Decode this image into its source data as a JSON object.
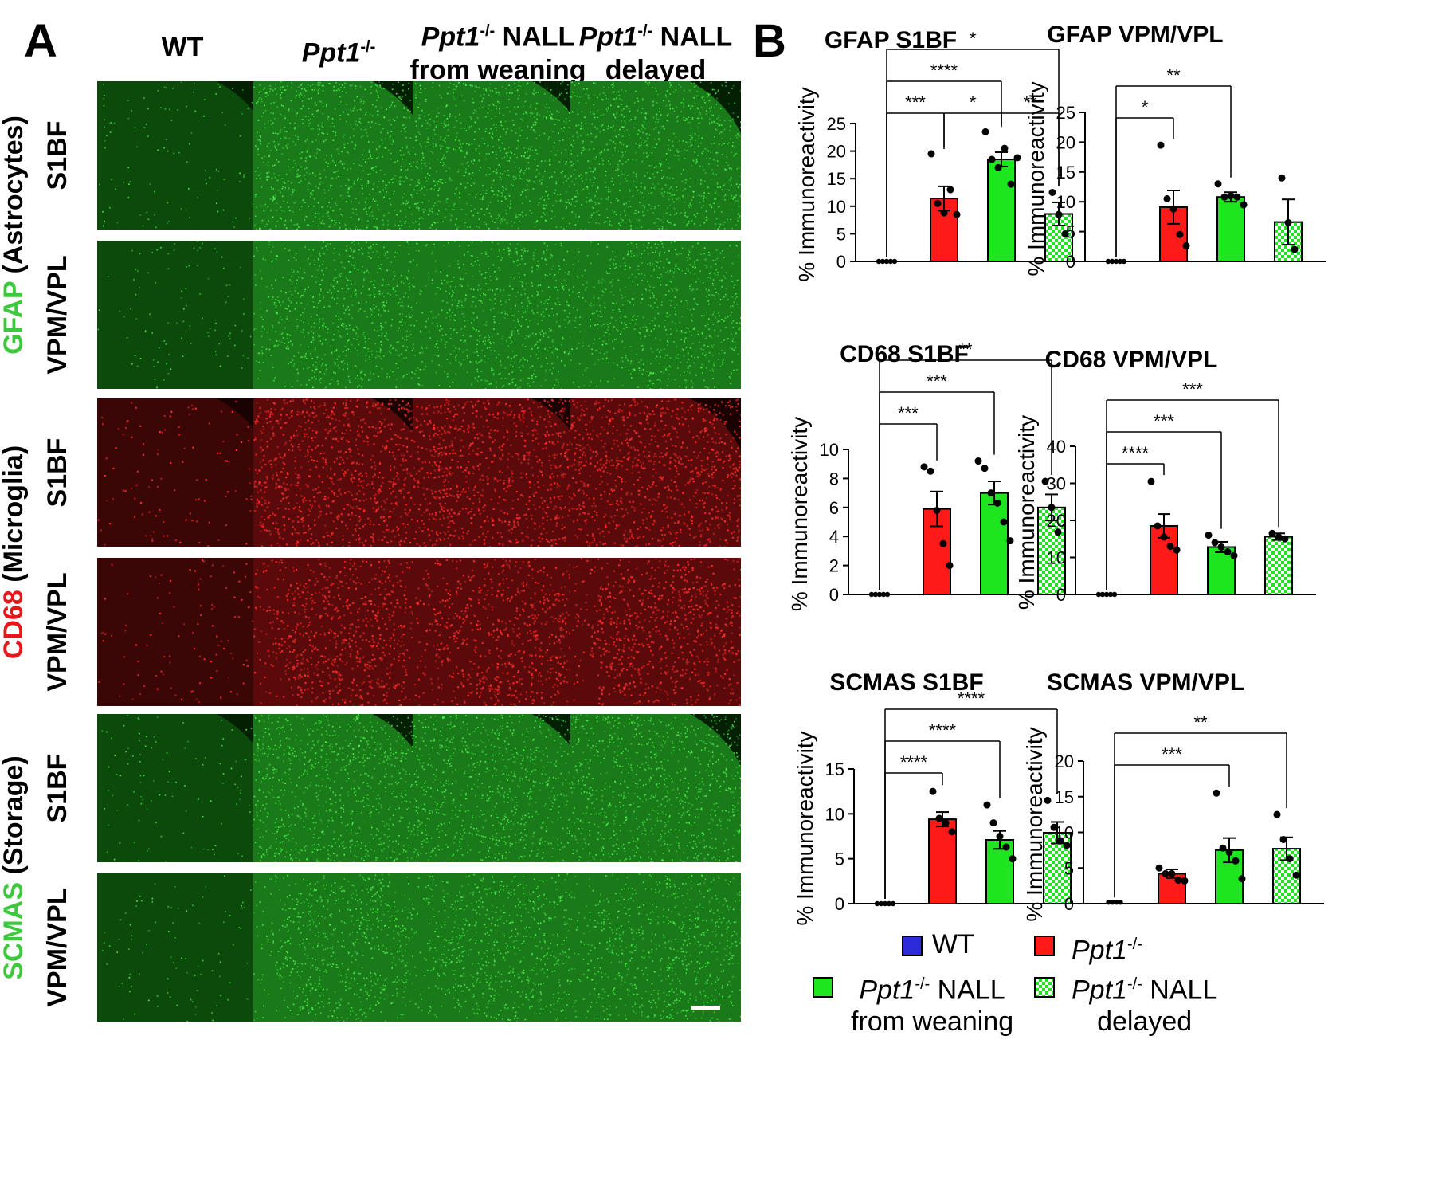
{
  "panel_a": {
    "letter": "A",
    "columns": [
      {
        "line1_italic": "",
        "line1_sup": "",
        "line1_rest": "WT",
        "line2": ""
      },
      {
        "line1_italic": "Ppt1",
        "line1_sup": "-/-",
        "line1_rest": "",
        "line2": ""
      },
      {
        "line1_italic": "Ppt1",
        "line1_sup": "-/-",
        "line1_rest": " NALL",
        "line2": "from weaning"
      },
      {
        "line1_italic": "Ppt1",
        "line1_sup": "-/-",
        "line1_rest": " NALL",
        "line2": "delayed"
      }
    ],
    "rows": [
      "S1BF",
      "VPM/VPL",
      "S1BF",
      "VPM/VPL",
      "S1BF",
      "VPM/VPL"
    ],
    "groups": [
      {
        "marker": "GFAP",
        "rest": " (Astrocytes)",
        "color": "#3ec83e"
      },
      {
        "marker": "CD68",
        "rest": " (Microglia)",
        "color": "#e8161b"
      },
      {
        "marker": "SCMAS",
        "rest": " (Storage)",
        "color": "#3ec83e"
      }
    ],
    "tile_colors": [
      "green",
      "green",
      "red",
      "red",
      "green",
      "green"
    ]
  },
  "panel_b": {
    "letter": "B",
    "legend": [
      {
        "italic": "",
        "sup": "",
        "rest": "WT",
        "line2": "",
        "style": "blue"
      },
      {
        "italic": "Ppt1",
        "sup": "-/-",
        "rest": "",
        "line2": "",
        "style": "red"
      },
      {
        "italic": "Ppt1",
        "sup": "-/-",
        "rest": " NALL",
        "line2": "from weaning",
        "style": "green"
      },
      {
        "italic": "Ppt1",
        "sup": "-/-",
        "rest": " NALL",
        "line2": "delayed",
        "style": "checker"
      }
    ]
  },
  "colors": {
    "WT": "#2b2bdc",
    "Ppt1": "#ff1a1a",
    "weaning": "#1ee61e",
    "delayed_a": "#1ee61e",
    "delayed_b": "#ffffff"
  },
  "chart_data": [
    {
      "type": "bar",
      "title": "GFAP S1BF",
      "ylabel": "% Immunoreactivity",
      "categories": [
        "WT",
        "Ppt1-/-",
        "Ppt1-/- NALL from weaning",
        "Ppt1-/- NALL delayed"
      ],
      "values": [
        0,
        11.4,
        18.5,
        8.6
      ],
      "errors": [
        0,
        2.2,
        1.3,
        2.1
      ],
      "points": [
        [
          0,
          0,
          0,
          0,
          0
        ],
        [
          19.5,
          10.5,
          8.8,
          13,
          8.5
        ],
        [
          23.5,
          18.5,
          17,
          20.5,
          14,
          18.8
        ],
        [
          12.5,
          8.5,
          5
        ]
      ],
      "ylim": [
        0,
        25
      ],
      "yticks": [
        0,
        5,
        10,
        15,
        20,
        25
      ],
      "significance": [
        {
          "from": 0,
          "to": 1,
          "label": "***",
          "level": 1
        },
        {
          "from": 1,
          "to": 2,
          "label": "*",
          "level": 1
        },
        {
          "from": 2,
          "to": 3,
          "label": "**",
          "level": 1
        },
        {
          "from": 0,
          "to": 2,
          "label": "****",
          "level": 2
        },
        {
          "from": 0,
          "to": 3,
          "label": "*",
          "level": 3
        }
      ]
    },
    {
      "type": "bar",
      "title": "GFAP VPM/VPL",
      "ylabel": "% Immunoreactivity",
      "categories": [
        "WT",
        "Ppt1-/-",
        "Ppt1-/- NALL from weaning",
        "Ppt1-/- NALL delayed"
      ],
      "values": [
        0,
        9.1,
        10.8,
        6.6
      ],
      "errors": [
        0,
        2.8,
        0.8,
        3.8
      ],
      "points": [
        [
          0,
          0,
          0,
          0,
          0
        ],
        [
          19.5,
          10.5,
          8.8,
          4.5,
          2.6
        ],
        [
          13,
          10.8,
          11,
          10.8,
          9.5
        ],
        [
          14,
          6.5,
          2
        ]
      ],
      "ylim": [
        0,
        25
      ],
      "yticks": [
        0,
        5,
        10,
        15,
        20,
        25
      ],
      "significance": [
        {
          "from": 0,
          "to": 1,
          "label": "*",
          "level": 1
        },
        {
          "from": 0,
          "to": 2,
          "label": "**",
          "level": 2
        }
      ]
    },
    {
      "type": "bar",
      "title": "CD68 S1BF",
      "ylabel": "% Immunoreactivity",
      "categories": [
        "WT",
        "Ppt1-/-",
        "Ppt1-/- NALL from weaning",
        "Ppt1-/- NALL delayed"
      ],
      "values": [
        0,
        5.9,
        7.0,
        6.0
      ],
      "errors": [
        0,
        1.2,
        0.8,
        0.9
      ],
      "points": [
        [
          0,
          0,
          0,
          0,
          0
        ],
        [
          8.8,
          8.5,
          5.8,
          3.5,
          2
        ],
        [
          9.2,
          8.7,
          7,
          6.3,
          5,
          3.7
        ],
        [
          7.8,
          6,
          4.3
        ]
      ],
      "ylim": [
        0,
        10
      ],
      "yticks": [
        0,
        2,
        4,
        6,
        8,
        10
      ],
      "significance": [
        {
          "from": 0,
          "to": 1,
          "label": "***",
          "level": 1
        },
        {
          "from": 0,
          "to": 2,
          "label": "***",
          "level": 2
        },
        {
          "from": 0,
          "to": 3,
          "label": "**",
          "level": 3
        }
      ]
    },
    {
      "type": "bar",
      "title": "CD68 VPM/VPL",
      "ylabel": "% Immunoreactivity",
      "categories": [
        "WT",
        "Ppt1-/-",
        "Ppt1-/- NALL from weaning",
        "Ppt1-/- NALL delayed"
      ],
      "values": [
        0,
        18.5,
        12.8,
        15.6
      ],
      "errors": [
        0,
        3.2,
        1.4,
        0.9
      ],
      "points": [
        [
          0,
          0,
          0,
          0,
          0
        ],
        [
          30.5,
          18.5,
          15.5,
          13,
          12
        ],
        [
          16,
          14,
          12.8,
          11.5,
          10.5
        ],
        [
          16.5,
          15.5,
          15
        ]
      ],
      "ylim": [
        0,
        40
      ],
      "yticks": [
        0,
        10,
        20,
        30,
        40
      ],
      "significance": [
        {
          "from": 0,
          "to": 1,
          "label": "****",
          "level": 1
        },
        {
          "from": 0,
          "to": 2,
          "label": "***",
          "level": 2
        },
        {
          "from": 0,
          "to": 3,
          "label": "***",
          "level": 3
        }
      ]
    },
    {
      "type": "bar",
      "title": "SCMAS S1BF",
      "ylabel": "% Immunoreactivity",
      "categories": [
        "WT",
        "Ppt1-/-",
        "Ppt1-/- NALL from weaning",
        "Ppt1-/- NALL delayed"
      ],
      "values": [
        0,
        9.4,
        7.1,
        7.9
      ],
      "errors": [
        0,
        0.8,
        1.0,
        1.2
      ],
      "points": [
        [
          0,
          0,
          0,
          0,
          0
        ],
        [
          12.5,
          9.5,
          9,
          8
        ],
        [
          11,
          9,
          7.5,
          6.3,
          5
        ],
        [
          11.5,
          8.5,
          7,
          6.5
        ]
      ],
      "ylim": [
        0,
        15
      ],
      "yticks": [
        0,
        5,
        10,
        15
      ],
      "significance": [
        {
          "from": 0,
          "to": 1,
          "label": "****",
          "level": 1
        },
        {
          "from": 0,
          "to": 2,
          "label": "****",
          "level": 2
        },
        {
          "from": 0,
          "to": 3,
          "label": "****",
          "level": 3
        }
      ]
    },
    {
      "type": "bar",
      "title": "SCMAS VPM/VPL",
      "ylabel": "% Immunoreactivity",
      "categories": [
        "WT",
        "Ppt1-/-",
        "Ppt1-/- NALL from weaning",
        "Ppt1-/- NALL delayed"
      ],
      "values": [
        0.2,
        4.2,
        7.5,
        7.7
      ],
      "errors": [
        0.1,
        0.6,
        1.7,
        1.6
      ],
      "points": [
        [
          0.2,
          0.2,
          0.2,
          0.2
        ],
        [
          5,
          4.2,
          4.2,
          3.3,
          3.2
        ],
        [
          15.5,
          7.8,
          7.2,
          6,
          3.5
        ],
        [
          12.5,
          9,
          6.3,
          4
        ]
      ],
      "ylim": [
        0,
        20
      ],
      "yticks": [
        0,
        5,
        10,
        15,
        20
      ],
      "significance": [
        {
          "from": 0,
          "to": 2,
          "label": "***",
          "level": 1
        },
        {
          "from": 0,
          "to": 3,
          "label": "**",
          "level": 2
        }
      ]
    }
  ]
}
